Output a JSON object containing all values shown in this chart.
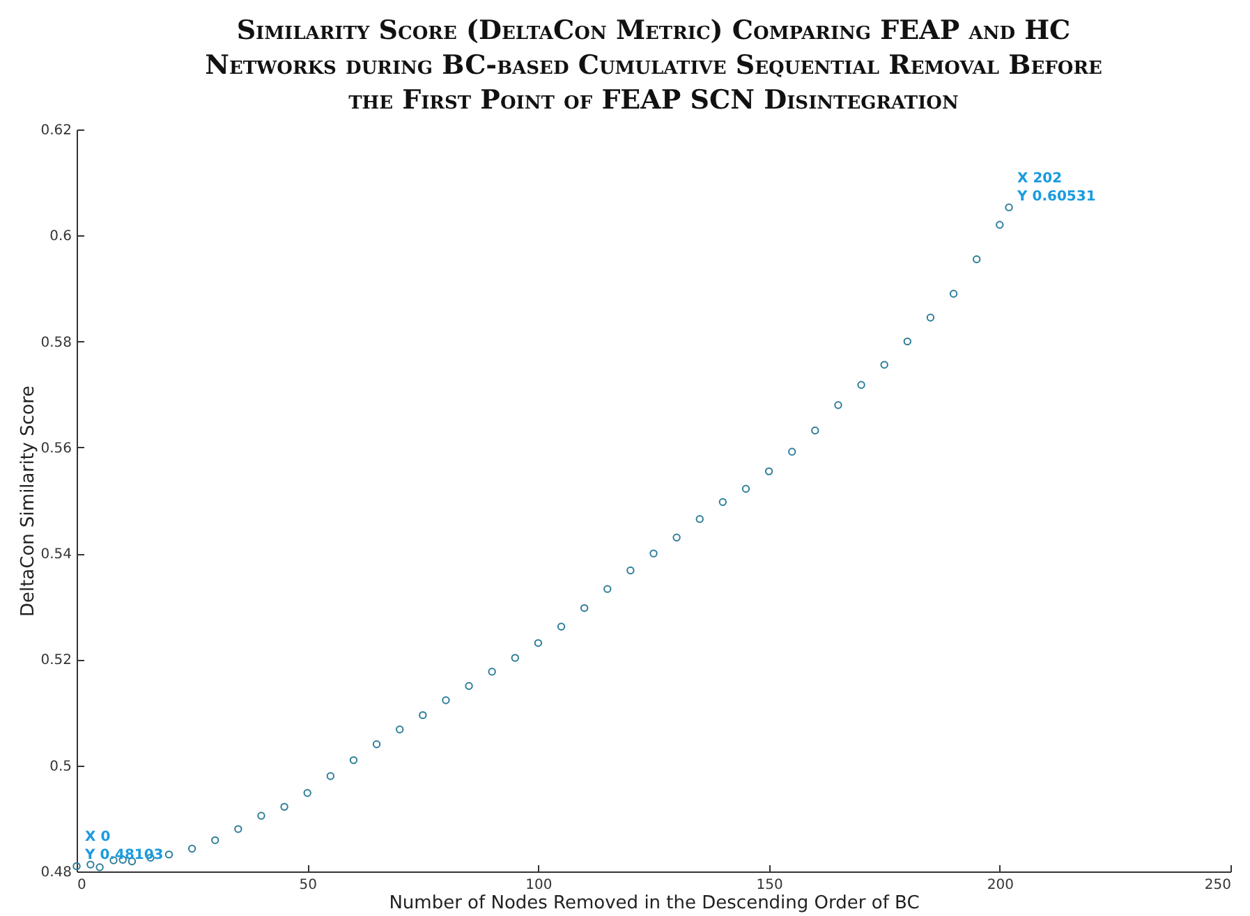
{
  "chart_data": {
    "type": "scatter",
    "title": "Similarity Score (DeltaCon Metric) Comparing FEAP and HC Networks during BC-based Cumulative Sequential Removal Before the  First Point of FEAP SCN Disintegration",
    "xlabel": "Number of Nodes Removed in the Descending Order of BC",
    "ylabel": "DeltaCon Similarity Score",
    "x": [
      0,
      3,
      5,
      8,
      10,
      12,
      16,
      20,
      25,
      30,
      35,
      40,
      45,
      50,
      55,
      60,
      65,
      70,
      75,
      80,
      85,
      90,
      95,
      100,
      105,
      110,
      115,
      120,
      125,
      130,
      135,
      140,
      145,
      150,
      155,
      160,
      165,
      170,
      175,
      180,
      185,
      190,
      195,
      200,
      202
    ],
    "series": [
      {
        "color": "#2e7d9a",
        "values": [
          0.481,
          0.4813,
          0.4808,
          0.4821,
          0.4822,
          0.4819,
          0.4826,
          0.4832,
          0.4843,
          0.4859,
          0.488,
          0.4905,
          0.4922,
          0.4948,
          0.498,
          0.501,
          0.504,
          0.5068,
          0.5095,
          0.5123,
          0.515,
          0.5177,
          0.5203,
          0.5231,
          0.5262,
          0.5297,
          0.5333,
          0.5368,
          0.54,
          0.543,
          0.5465,
          0.5497,
          0.5522,
          0.5555,
          0.5592,
          0.5632,
          0.568,
          0.5718,
          0.5756,
          0.58,
          0.5845,
          0.589,
          0.5955,
          0.602,
          0.6053
        ]
      }
    ],
    "xlim": [
      0,
      250
    ],
    "xticks": [
      0,
      50,
      100,
      150,
      200,
      250
    ],
    "ylim": [
      0.48,
      0.62
    ],
    "yticks": [
      0.48,
      0.5,
      0.52,
      0.54,
      0.56,
      0.58,
      0.6,
      0.62
    ],
    "marker": "circle",
    "grid": false,
    "annotations": [
      {
        "text": "X 0\nY 0.48103",
        "x": 0,
        "y": 0.48103
      },
      {
        "text": "X 202\nY 0.60531",
        "x": 202,
        "y": 0.60531
      }
    ]
  }
}
